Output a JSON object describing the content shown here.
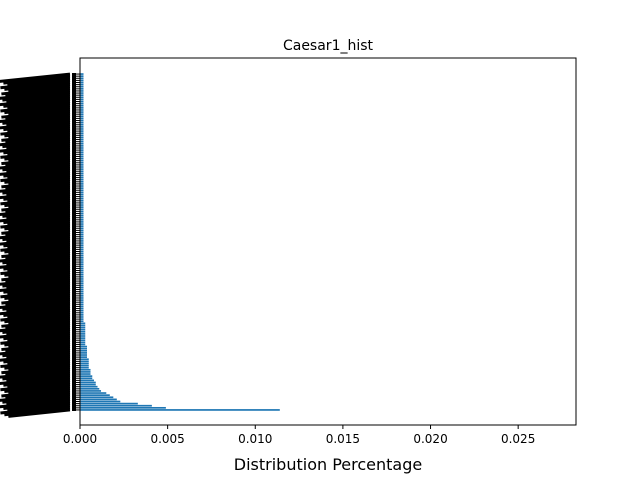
{
  "chart_data": {
    "type": "bar",
    "orientation": "horizontal",
    "title": "Caesar1_hist",
    "xlabel": "Distribution Percentage",
    "ylabel": "",
    "xlim": [
      0,
      0.0283
    ],
    "x_ticks": [
      "0.000",
      "0.005",
      "0.010",
      "0.015",
      "0.020",
      "0.025"
    ],
    "x_tick_values": [
      0,
      0.005,
      0.01,
      0.015,
      0.02,
      0.025
    ],
    "bar_color": "#1f77b4",
    "grid": false,
    "y_tick_labels_legible": false,
    "values": [
      0.0114,
      0.0049,
      0.0041,
      0.0033,
      0.0023,
      0.0021,
      0.0019,
      0.0017,
      0.0015,
      0.0012,
      0.0011,
      0.001,
      0.0009,
      0.0009,
      0.0008,
      0.0007,
      0.0007,
      0.0006,
      0.0006,
      0.0006,
      0.0005,
      0.0005,
      0.0005,
      0.0005,
      0.0005,
      0.0004,
      0.0004,
      0.0004,
      0.0004,
      0.0004,
      0.0004,
      0.0003,
      0.0003,
      0.0003,
      0.0003,
      0.0003,
      0.0003,
      0.0003,
      0.0003,
      0.0003,
      0.0003,
      0.0003,
      0.0002,
      0.0002,
      0.0002,
      0.0002,
      0.0002,
      0.0002,
      0.0002,
      0.0002,
      0.0002,
      0.0002,
      0.0002,
      0.0002,
      0.0002,
      0.0002,
      0.0002,
      0.0002,
      0.0002,
      0.0002,
      0.0002,
      0.0002,
      0.0002,
      0.0002,
      0.0002,
      0.0002,
      0.0002,
      0.0002,
      0.0002,
      0.0002,
      0.0002,
      0.0002,
      0.0002,
      0.0002,
      0.0002,
      0.0002,
      0.0002,
      0.0002,
      0.0002,
      0.0002,
      0.0002,
      0.0002,
      0.0002,
      0.0002,
      0.0002,
      0.0002,
      0.0002,
      0.0002,
      0.0002,
      0.0002,
      0.0002,
      0.0002,
      0.0002,
      0.0002,
      0.0002,
      0.0002,
      0.0002,
      0.0002,
      0.0002,
      0.0002,
      0.0002,
      0.0002,
      0.0002,
      0.0002,
      0.0002,
      0.0002,
      0.0002,
      0.0002,
      0.0002,
      0.0002,
      0.0002,
      0.0002,
      0.0002,
      0.0002,
      0.0002,
      0.0002,
      0.0002,
      0.0002,
      0.0002,
      0.0002,
      0.0002,
      0.0002,
      0.0002,
      0.0002,
      0.0002,
      0.0002,
      0.0002,
      0.0002,
      0.0002,
      0.0002,
      0.0002,
      0.0002,
      0.0002,
      0.0002,
      0.0002,
      0.0002,
      0.0002,
      0.0002,
      0.0002,
      0.0002,
      0.0002,
      0.0002,
      0.0002,
      0.0002,
      0.0002,
      0.0002,
      0.0002,
      0.0002,
      0.0002,
      0.0002,
      0.0002,
      0.0002,
      0.0002,
      0.0002,
      0.0002,
      0.0002,
      0.0002,
      0.0002,
      0.0002,
      0.0002
    ]
  }
}
